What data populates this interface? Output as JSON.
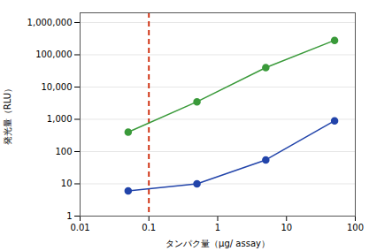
{
  "chart_data": {
    "type": "line",
    "x": [
      0.05,
      0.5,
      5,
      50
    ],
    "series": [
      {
        "color": "#3a9a3a",
        "marker": "circle",
        "values": [
          400,
          3500,
          40000,
          280000
        ]
      },
      {
        "color": "#2244aa",
        "marker": "circle",
        "values": [
          6,
          10,
          55,
          900
        ]
      }
    ],
    "reference_lines": [
      {
        "x": 0.1,
        "color": "#cc2200",
        "line_style": "dashed"
      }
    ],
    "xlabel": "タンパク量（μg/ assay）",
    "ylabel": "発光量（RLU）",
    "log": true,
    "xlim": [
      0.01,
      100
    ],
    "ylim": [
      1,
      2000000
    ],
    "xticks": [
      0.01,
      0.1,
      1,
      10,
      100
    ],
    "yticks": [
      1,
      10,
      100,
      {
        "value": 1000,
        "label": "1,000"
      },
      {
        "value": 10000,
        "label": "10,000"
      },
      {
        "value": 100000,
        "label": "100,000"
      },
      {
        "value": 1000000,
        "label": "1,000,000"
      }
    ],
    "grid": "y"
  }
}
